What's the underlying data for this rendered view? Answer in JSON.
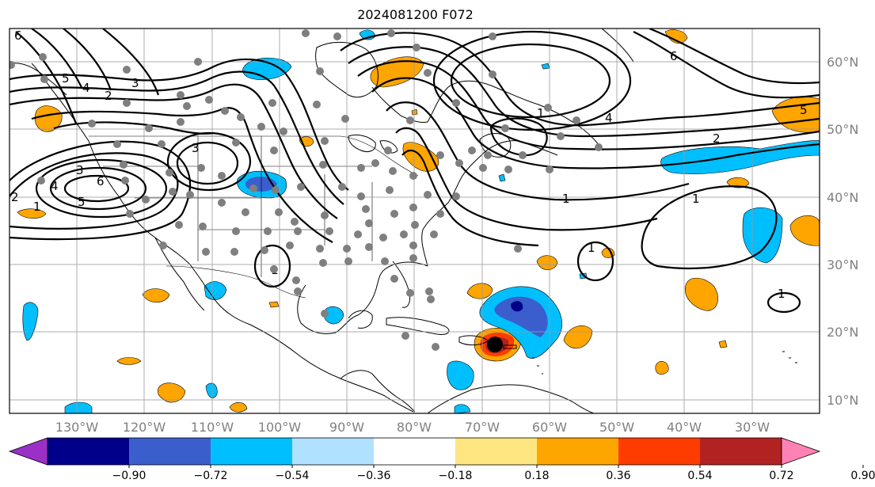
{
  "title": "2024081200 F072",
  "map": {
    "projection": "PlateCarree",
    "extent_lon": [
      -140,
      -20
    ],
    "extent_lat": [
      8,
      65
    ],
    "lat_labels": [
      "10°N",
      "20°N",
      "30°N",
      "40°N",
      "50°N",
      "60°N"
    ],
    "lon_labels": [
      "130°W",
      "120°W",
      "110°W",
      "100°W",
      "90°W",
      "80°W",
      "70°W",
      "60°W",
      "50°W",
      "40°W",
      "30°W"
    ],
    "contour_labels": [
      "6",
      "5",
      "4",
      "3",
      "2",
      "1",
      "3",
      "6",
      "4",
      "5",
      "2",
      "3",
      "1",
      "6",
      "4",
      "5",
      "2",
      "1",
      "1",
      "1",
      "1",
      "1"
    ]
  },
  "colorbar": {
    "ticks": [
      "−0.90",
      "−0.72",
      "−0.54",
      "−0.36",
      "−0.18",
      "0.18",
      "0.36",
      "0.54",
      "0.72",
      "0.90"
    ],
    "colors": [
      "#9b30c8",
      "#00008b",
      "#3a5fcd",
      "#00bfff",
      "#b0e2ff",
      "#ffffff",
      "#ffe680",
      "#ffa500",
      "#ff3c00",
      "#b22222",
      "#ff82b4"
    ]
  }
}
